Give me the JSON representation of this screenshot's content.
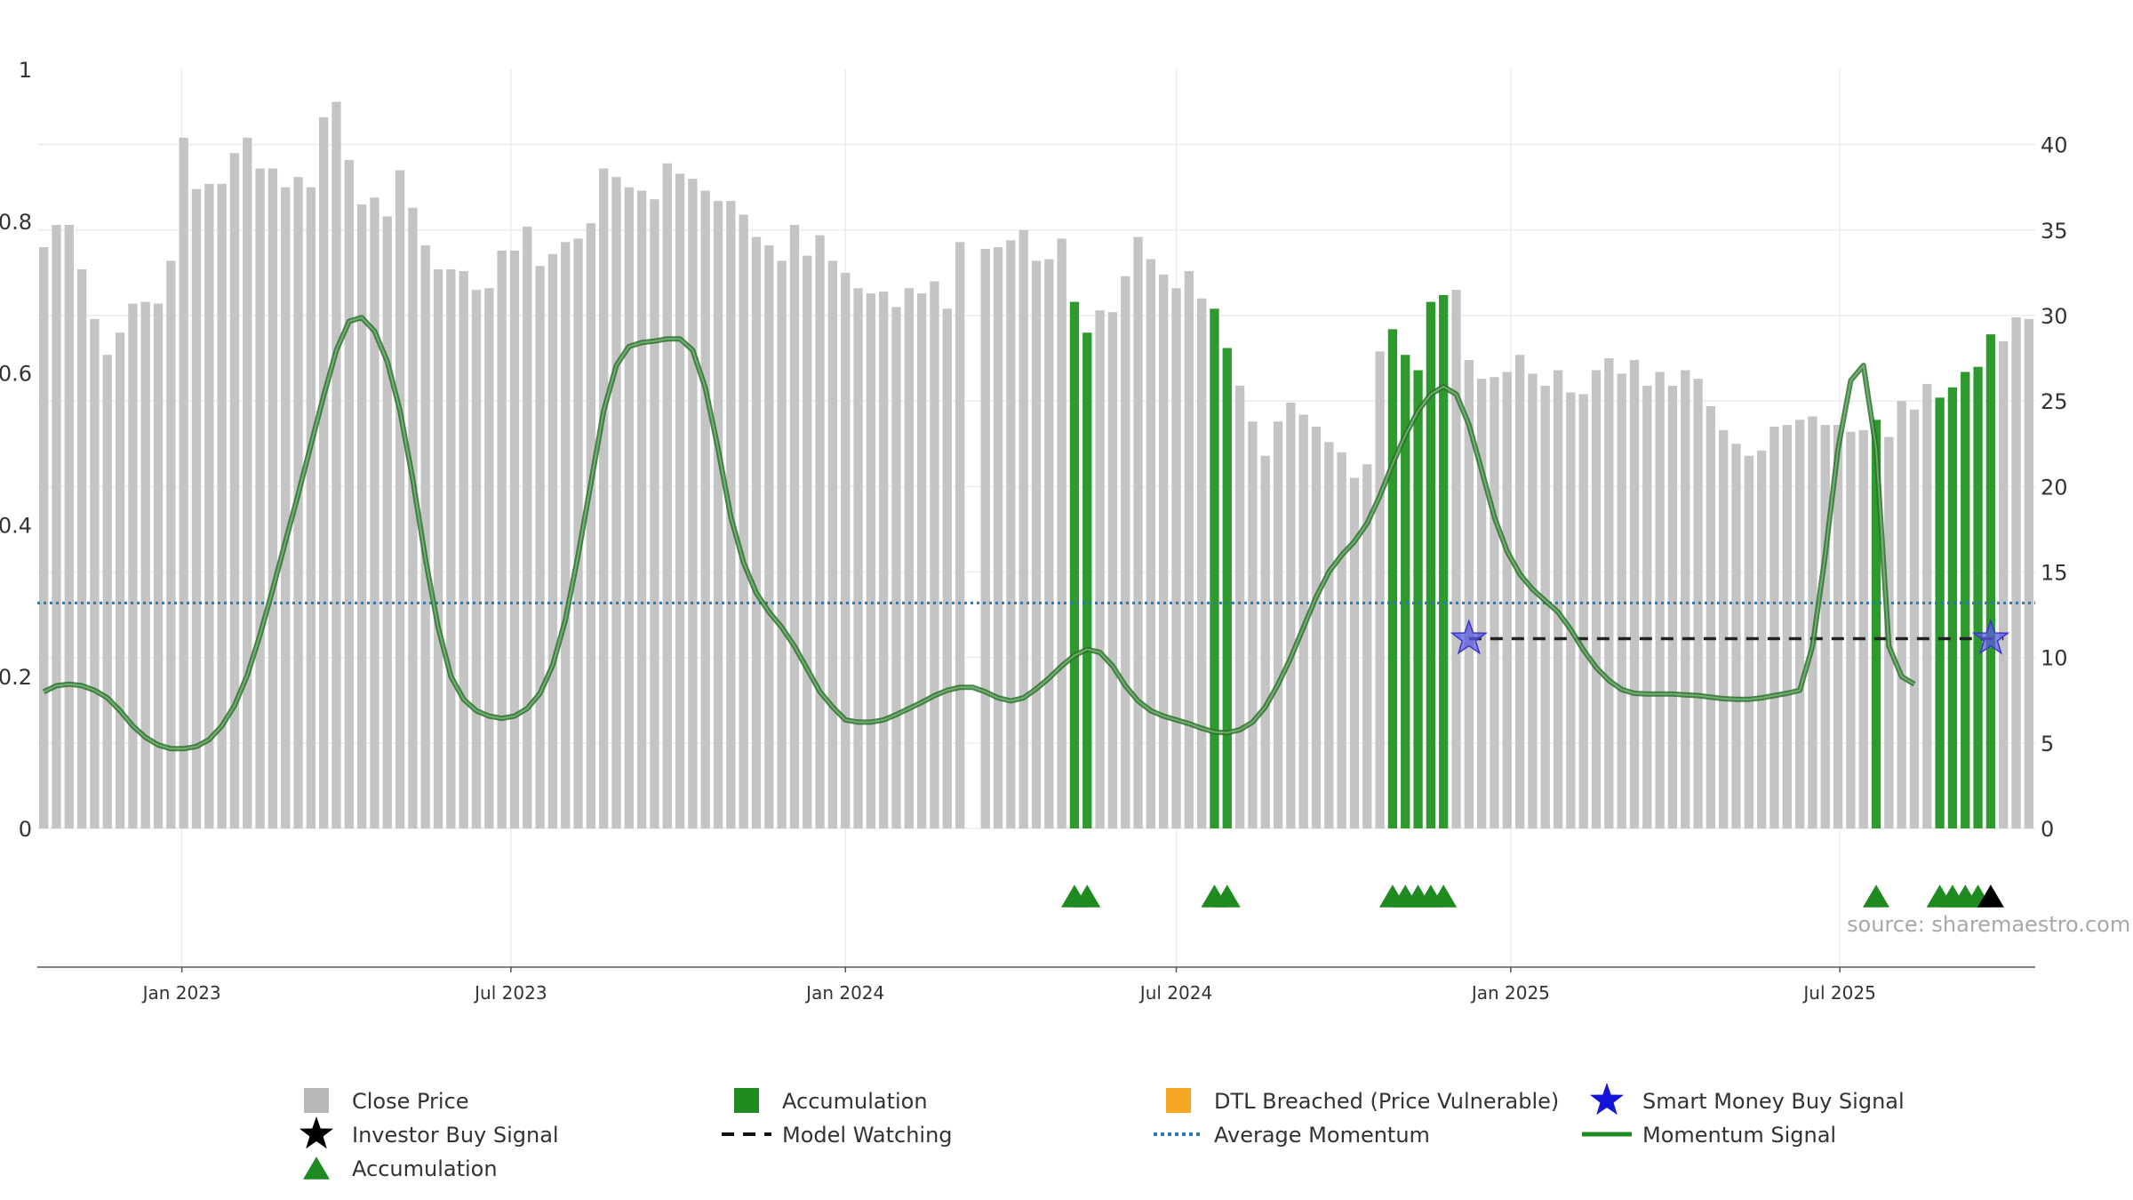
{
  "chart_data": {
    "type": "bar",
    "x_start": "2022-10-17",
    "x_step_days": 7,
    "x_ticks": [
      "Jan 2023",
      "Jul 2023",
      "Jan 2024",
      "Jul 2024",
      "Jan 2025",
      "Jul 2025"
    ],
    "x_tick_dates": [
      "2023-01-01",
      "2023-07-01",
      "2024-01-01",
      "2024-07-01",
      "2025-01-01",
      "2025-07-01"
    ],
    "left_axis": {
      "ylim": [
        0,
        1
      ],
      "ticks": [
        "0",
        "0.2",
        "0.4",
        "0.6",
        "0.8",
        "1"
      ]
    },
    "right_axis": {
      "ylim": [
        0,
        44.4
      ],
      "ticks": [
        "0",
        "5",
        "10",
        "15",
        "20",
        "25",
        "30",
        "35",
        "40"
      ]
    },
    "grid": true,
    "legend_position": "bottom",
    "series": [
      {
        "name": "Close Price",
        "kind": "bar",
        "axis": "right",
        "color": "#c4c4c4",
        "values": [
          34.0,
          35.3,
          35.3,
          32.7,
          29.8,
          27.7,
          29.0,
          30.7,
          30.8,
          30.7,
          33.2,
          40.4,
          37.4,
          37.7,
          37.7,
          39.5,
          40.4,
          38.6,
          38.6,
          37.5,
          38.1,
          37.5,
          41.6,
          42.5,
          39.1,
          36.5,
          36.9,
          35.8,
          38.5,
          36.3,
          34.1,
          32.7,
          32.7,
          32.6,
          31.5,
          31.6,
          33.8,
          33.8,
          35.2,
          32.9,
          33.6,
          34.3,
          34.5,
          35.4,
          38.6,
          38.1,
          37.5,
          37.3,
          36.8,
          38.9,
          38.3,
          38.0,
          37.3,
          36.7,
          36.7,
          35.9,
          34.6,
          34.1,
          33.2,
          35.3,
          33.5,
          34.7,
          33.2,
          32.5,
          31.6,
          31.3,
          31.4,
          30.5,
          31.6,
          31.3,
          32.0,
          30.4,
          34.3,
          null,
          33.9,
          34.0,
          34.4,
          35.0,
          33.2,
          33.3,
          34.5,
          30.8,
          29.0,
          30.3,
          30.2,
          32.3,
          34.6,
          33.3,
          32.4,
          31.6,
          32.6,
          31.0,
          30.4,
          28.1,
          25.9,
          23.8,
          21.8,
          23.8,
          24.9,
          24.2,
          23.5,
          22.6,
          22.0,
          20.5,
          21.3,
          27.9,
          29.2,
          27.7,
          26.8,
          30.8,
          31.2,
          31.5,
          27.4,
          26.3,
          26.4,
          26.7,
          27.7,
          26.6,
          25.9,
          26.8,
          25.5,
          25.4,
          26.8,
          27.5,
          26.6,
          27.4,
          25.9,
          26.7,
          25.9,
          26.8,
          26.3,
          24.7,
          23.3,
          22.5,
          21.8,
          22.1,
          23.5,
          23.6,
          23.9,
          24.1,
          23.6,
          23.6,
          23.2,
          23.3,
          23.9,
          22.9,
          25.0,
          24.5,
          26.0,
          25.2,
          25.8,
          26.7,
          27.0,
          28.9,
          28.5,
          29.9,
          29.8
        ],
        "accumulation_indices": [
          81,
          82,
          92,
          93,
          106,
          107,
          108,
          109,
          110,
          144,
          149,
          150,
          151,
          152,
          153
        ]
      },
      {
        "name": "Momentum Signal",
        "kind": "line",
        "axis": "left",
        "color": "#3a8f3a",
        "values": [
          0.18,
          0.188,
          0.19,
          0.188,
          0.182,
          0.172,
          0.155,
          0.135,
          0.12,
          0.11,
          0.105,
          0.105,
          0.108,
          0.117,
          0.135,
          0.162,
          0.202,
          0.255,
          0.315,
          0.378,
          0.44,
          0.505,
          0.57,
          0.63,
          0.668,
          0.673,
          0.655,
          0.615,
          0.55,
          0.46,
          0.355,
          0.265,
          0.2,
          0.17,
          0.155,
          0.148,
          0.145,
          0.148,
          0.158,
          0.178,
          0.215,
          0.275,
          0.36,
          0.455,
          0.55,
          0.61,
          0.635,
          0.64,
          0.642,
          0.645,
          0.645,
          0.63,
          0.58,
          0.5,
          0.41,
          0.35,
          0.31,
          0.285,
          0.265,
          0.24,
          0.21,
          0.18,
          0.16,
          0.143,
          0.14,
          0.14,
          0.143,
          0.15,
          0.158,
          0.166,
          0.175,
          0.182,
          0.186,
          0.186,
          0.18,
          0.172,
          0.168,
          0.172,
          0.184,
          0.198,
          0.214,
          0.228,
          0.236,
          0.232,
          0.214,
          0.188,
          0.168,
          0.155,
          0.148,
          0.143,
          0.138,
          0.132,
          0.127,
          0.126,
          0.13,
          0.14,
          0.16,
          0.19,
          0.225,
          0.265,
          0.305,
          0.338,
          0.36,
          0.378,
          0.402,
          0.438,
          0.48,
          0.518,
          0.55,
          0.572,
          0.582,
          0.572,
          0.532,
          0.472,
          0.41,
          0.365,
          0.335,
          0.315,
          0.3,
          0.285,
          0.262,
          0.235,
          0.212,
          0.195,
          0.183,
          0.178,
          0.177,
          0.177,
          0.177,
          0.176,
          0.175,
          0.173,
          0.171,
          0.17,
          0.17,
          0.172,
          0.175,
          0.178,
          0.182,
          0.24,
          0.36,
          0.5,
          0.59,
          0.61,
          0.5,
          0.24,
          0.2,
          0.19
        ]
      },
      {
        "name": "Average Momentum",
        "kind": "hline",
        "axis": "left",
        "color": "#2e78a8",
        "value": 0.297
      },
      {
        "name": "Model Watching",
        "kind": "hline",
        "axis": "left",
        "color": "#222222",
        "value": 0.25,
        "from_index": 112,
        "to_index": 154
      },
      {
        "name": "Smart Money Buy Signal",
        "kind": "marker",
        "axis": "left",
        "color": "#3a3ad8",
        "points": [
          {
            "index": 112,
            "value": 0.25
          },
          {
            "index": 153,
            "value": 0.25
          }
        ]
      },
      {
        "name": "Accumulation",
        "kind": "triangle_markers",
        "color": "#1f8a1f",
        "indices": [
          81,
          82,
          92,
          93,
          106,
          107,
          108,
          109,
          110,
          144,
          149,
          150,
          151,
          152
        ]
      },
      {
        "name": "Investor Buy Signal",
        "kind": "triangle_markers",
        "color": "#000000",
        "indices": [
          153
        ]
      }
    ]
  },
  "legend": [
    {
      "label": "Close Price",
      "swatch": "square",
      "color": "#b8b8b8"
    },
    {
      "label": "Accumulation",
      "swatch": "square",
      "color": "#1f8a1f"
    },
    {
      "label": "DTL Breached (Price Vulnerable)",
      "swatch": "square",
      "color": "#f5a623"
    },
    {
      "label": "Smart Money Buy Signal",
      "swatch": "star",
      "color": "#1414d8"
    },
    {
      "label": "Investor Buy Signal",
      "swatch": "star",
      "color": "#000000"
    },
    {
      "label": "Model Watching",
      "swatch": "dash",
      "color": "#111111"
    },
    {
      "label": "Average Momentum",
      "swatch": "dot",
      "color": "#2e78a8"
    },
    {
      "label": "Momentum Signal",
      "swatch": "line",
      "color": "#1f8a1f"
    },
    {
      "label": "Accumulation",
      "swatch": "triangle",
      "color": "#1f8a1f"
    }
  ],
  "source": "source: sharemaestro.com"
}
